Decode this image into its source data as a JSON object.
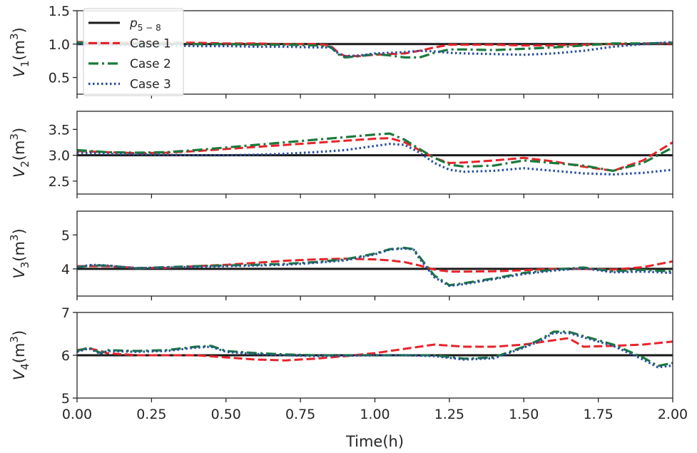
{
  "chart_data": [
    {
      "type": "line",
      "ylabel": "V1(m3)",
      "ylabel_var": "V",
      "ylabel_sub": "1",
      "ylabel_unit_base": "(m",
      "ylabel_unit_sup": "3",
      "ylabel_unit_end": ")",
      "xlim": [
        0,
        2
      ],
      "ylim": [
        0.25,
        1.5
      ],
      "yticks": [
        0.5,
        1.0,
        1.5
      ],
      "ytick_labels": [
        "0.5",
        "1.0",
        "1.5"
      ],
      "reference": 1.0,
      "series": [
        {
          "name": "Case 1",
          "x": [
            0,
            0.1,
            0.2,
            0.3,
            0.4,
            0.5,
            0.6,
            0.7,
            0.8,
            0.85,
            0.88,
            0.9,
            0.95,
            1.0,
            1.05,
            1.1,
            1.15,
            1.2,
            1.25,
            1.3,
            1.4,
            1.5,
            1.6,
            1.7,
            1.8,
            1.9,
            2.0
          ],
          "y": [
            1.03,
            1.03,
            1.02,
            1.02,
            1.02,
            1.01,
            1.01,
            1.0,
            1.0,
            0.98,
            0.86,
            0.82,
            0.82,
            0.84,
            0.85,
            0.86,
            0.9,
            0.95,
            0.99,
            0.99,
            0.99,
            0.98,
            0.98,
            0.99,
            1.0,
            1.01,
            1.01
          ]
        },
        {
          "name": "Case 2",
          "x": [
            0,
            0.1,
            0.2,
            0.3,
            0.4,
            0.5,
            0.6,
            0.7,
            0.8,
            0.85,
            0.88,
            0.9,
            0.95,
            1.0,
            1.05,
            1.1,
            1.15,
            1.2,
            1.25,
            1.3,
            1.4,
            1.5,
            1.6,
            1.7,
            1.8,
            1.9,
            2.0
          ],
          "y": [
            1.02,
            1.02,
            1.01,
            1.01,
            1.0,
            1.0,
            0.99,
            0.99,
            0.98,
            0.96,
            0.84,
            0.8,
            0.82,
            0.85,
            0.83,
            0.8,
            0.8,
            0.87,
            0.92,
            0.92,
            0.91,
            0.93,
            0.95,
            0.98,
            1.01,
            1.01,
            1.02
          ]
        },
        {
          "name": "Case 3",
          "x": [
            0,
            0.1,
            0.2,
            0.3,
            0.4,
            0.5,
            0.6,
            0.7,
            0.8,
            0.85,
            0.88,
            0.9,
            0.95,
            1.0,
            1.05,
            1.1,
            1.15,
            1.2,
            1.25,
            1.3,
            1.4,
            1.5,
            1.6,
            1.7,
            1.8,
            1.9,
            2.0
          ],
          "y": [
            1.0,
            0.99,
            0.98,
            0.98,
            0.97,
            0.97,
            0.96,
            0.96,
            0.95,
            0.95,
            0.85,
            0.82,
            0.83,
            0.86,
            0.87,
            0.88,
            0.9,
            0.89,
            0.87,
            0.86,
            0.85,
            0.84,
            0.86,
            0.9,
            0.96,
            1.0,
            1.03
          ]
        }
      ]
    },
    {
      "type": "line",
      "ylabel": "V2(m3)",
      "ylabel_var": "V",
      "ylabel_sub": "2",
      "ylabel_unit_base": "(m",
      "ylabel_unit_sup": "3",
      "ylabel_unit_end": ")",
      "xlim": [
        0,
        2
      ],
      "ylim": [
        2.25,
        3.85
      ],
      "yticks": [
        2.5,
        3.0,
        3.5
      ],
      "ytick_labels": [
        "2.5",
        "3.0",
        "3.5"
      ],
      "reference": 3.0,
      "series": [
        {
          "name": "Case 1",
          "x": [
            0,
            0.1,
            0.2,
            0.3,
            0.4,
            0.5,
            0.6,
            0.7,
            0.8,
            0.9,
            1.0,
            1.05,
            1.1,
            1.15,
            1.2,
            1.25,
            1.3,
            1.4,
            1.5,
            1.6,
            1.7,
            1.8,
            1.9,
            2.0
          ],
          "y": [
            3.08,
            3.06,
            3.04,
            3.05,
            3.08,
            3.12,
            3.16,
            3.2,
            3.24,
            3.28,
            3.32,
            3.33,
            3.25,
            3.1,
            2.95,
            2.85,
            2.86,
            2.9,
            2.95,
            2.88,
            2.78,
            2.7,
            2.9,
            3.25
          ]
        },
        {
          "name": "Case 2",
          "x": [
            0,
            0.1,
            0.2,
            0.3,
            0.4,
            0.5,
            0.6,
            0.7,
            0.8,
            0.9,
            1.0,
            1.05,
            1.1,
            1.15,
            1.2,
            1.25,
            1.3,
            1.4,
            1.5,
            1.6,
            1.7,
            1.8,
            1.9,
            2.0
          ],
          "y": [
            3.1,
            3.06,
            3.05,
            3.06,
            3.1,
            3.15,
            3.2,
            3.25,
            3.3,
            3.35,
            3.4,
            3.42,
            3.3,
            3.12,
            2.95,
            2.82,
            2.78,
            2.8,
            2.9,
            2.85,
            2.8,
            2.7,
            2.85,
            3.15
          ]
        },
        {
          "name": "Case 3",
          "x": [
            0,
            0.1,
            0.2,
            0.3,
            0.4,
            0.5,
            0.6,
            0.7,
            0.8,
            0.9,
            1.0,
            1.05,
            1.1,
            1.15,
            1.2,
            1.25,
            1.3,
            1.4,
            1.5,
            1.6,
            1.7,
            1.8,
            1.9,
            2.0
          ],
          "y": [
            3.05,
            3.03,
            3.02,
            3.01,
            3.0,
            3.0,
            3.01,
            3.03,
            3.06,
            3.1,
            3.18,
            3.22,
            3.2,
            3.05,
            2.85,
            2.72,
            2.68,
            2.7,
            2.75,
            2.7,
            2.65,
            2.63,
            2.66,
            2.72
          ]
        }
      ]
    },
    {
      "type": "line",
      "ylabel": "V3(m3)",
      "ylabel_var": "V",
      "ylabel_sub": "3",
      "ylabel_unit_base": "(m",
      "ylabel_unit_sup": "3",
      "ylabel_unit_end": ")",
      "xlim": [
        0,
        2
      ],
      "ylim": [
        3.2,
        5.7
      ],
      "yticks": [
        4,
        5
      ],
      "ytick_labels": [
        "4",
        "5"
      ],
      "reference": 4.0,
      "series": [
        {
          "name": "Case 1",
          "x": [
            0,
            0.1,
            0.2,
            0.3,
            0.4,
            0.5,
            0.6,
            0.7,
            0.8,
            0.9,
            1.0,
            1.05,
            1.1,
            1.15,
            1.2,
            1.25,
            1.3,
            1.4,
            1.5,
            1.6,
            1.7,
            1.8,
            1.9,
            2.0
          ],
          "y": [
            4.08,
            4.08,
            4.03,
            4.03,
            4.08,
            4.12,
            4.18,
            4.24,
            4.28,
            4.3,
            4.28,
            4.25,
            4.2,
            4.1,
            3.98,
            3.92,
            3.92,
            3.93,
            3.96,
            4.0,
            4.0,
            3.98,
            4.05,
            4.22
          ]
        },
        {
          "name": "Case 2",
          "x": [
            0,
            0.05,
            0.1,
            0.2,
            0.3,
            0.4,
            0.5,
            0.6,
            0.7,
            0.8,
            0.9,
            1.0,
            1.05,
            1.1,
            1.13,
            1.15,
            1.2,
            1.25,
            1.3,
            1.4,
            1.5,
            1.6,
            1.7,
            1.8,
            1.9,
            2.0
          ],
          "y": [
            4.05,
            4.1,
            4.1,
            4.02,
            4.05,
            4.08,
            4.1,
            4.12,
            4.15,
            4.2,
            4.28,
            4.45,
            4.58,
            4.62,
            4.58,
            4.35,
            3.8,
            3.52,
            3.58,
            3.72,
            3.88,
            3.98,
            4.04,
            3.93,
            3.97,
            3.92
          ]
        },
        {
          "name": "Case 3",
          "x": [
            0,
            0.05,
            0.1,
            0.2,
            0.3,
            0.4,
            0.5,
            0.6,
            0.7,
            0.8,
            0.9,
            1.0,
            1.05,
            1.1,
            1.13,
            1.15,
            1.2,
            1.25,
            1.3,
            1.4,
            1.5,
            1.6,
            1.7,
            1.8,
            1.9,
            2.0
          ],
          "y": [
            4.05,
            4.12,
            4.1,
            4.02,
            4.04,
            4.06,
            4.08,
            4.1,
            4.12,
            4.18,
            4.25,
            4.43,
            4.57,
            4.6,
            4.57,
            4.3,
            3.75,
            3.5,
            3.55,
            3.7,
            3.85,
            3.95,
            4.02,
            3.9,
            3.92,
            3.88
          ]
        }
      ]
    },
    {
      "type": "line",
      "ylabel": "V4(m3)",
      "ylabel_var": "V",
      "ylabel_sub": "4",
      "ylabel_unit_base": "(m",
      "ylabel_unit_sup": "3",
      "ylabel_unit_end": ")",
      "xlim": [
        0,
        2
      ],
      "ylim": [
        5,
        7
      ],
      "yticks": [
        5,
        6,
        7
      ],
      "ytick_labels": [
        "5",
        "6",
        "7"
      ],
      "reference": 6.0,
      "xticks": [
        0,
        0.25,
        0.5,
        0.75,
        1.0,
        1.25,
        1.5,
        1.75,
        2.0
      ],
      "xtick_labels": [
        "0.00",
        "0.25",
        "0.50",
        "0.75",
        "1.00",
        "1.25",
        "1.50",
        "1.75",
        "2.00"
      ],
      "xlabel": "Time(h)",
      "series": [
        {
          "name": "Case 1",
          "x": [
            0,
            0.04,
            0.08,
            0.1,
            0.2,
            0.3,
            0.4,
            0.5,
            0.6,
            0.7,
            0.8,
            0.9,
            1.0,
            1.1,
            1.2,
            1.3,
            1.4,
            1.5,
            1.6,
            1.65,
            1.7,
            1.8,
            1.9,
            2.0
          ],
          "y": [
            6.12,
            6.16,
            6.1,
            6.05,
            6.0,
            6.0,
            6.0,
            5.95,
            5.9,
            5.88,
            5.92,
            5.98,
            6.05,
            6.15,
            6.25,
            6.2,
            6.2,
            6.25,
            6.35,
            6.4,
            6.2,
            6.22,
            6.25,
            6.32
          ]
        },
        {
          "name": "Case 2",
          "x": [
            0,
            0.04,
            0.08,
            0.1,
            0.2,
            0.3,
            0.4,
            0.45,
            0.5,
            0.6,
            0.7,
            0.8,
            0.9,
            1.0,
            1.1,
            1.2,
            1.3,
            1.4,
            1.5,
            1.55,
            1.6,
            1.65,
            1.7,
            1.8,
            1.9,
            1.95,
            2.0
          ],
          "y": [
            6.1,
            6.18,
            6.05,
            6.12,
            6.1,
            6.12,
            6.2,
            6.22,
            6.1,
            6.05,
            6.02,
            6.0,
            6.0,
            6.0,
            6.0,
            6.0,
            5.92,
            5.95,
            6.2,
            6.35,
            6.55,
            6.55,
            6.45,
            6.25,
            5.95,
            5.75,
            5.82
          ]
        },
        {
          "name": "Case 3",
          "x": [
            0,
            0.04,
            0.08,
            0.1,
            0.2,
            0.3,
            0.4,
            0.45,
            0.5,
            0.6,
            0.7,
            0.8,
            0.9,
            1.0,
            1.1,
            1.2,
            1.3,
            1.4,
            1.5,
            1.55,
            1.6,
            1.65,
            1.7,
            1.8,
            1.9,
            1.95,
            2.0
          ],
          "y": [
            6.08,
            6.16,
            6.03,
            6.1,
            6.08,
            6.1,
            6.18,
            6.2,
            6.08,
            6.03,
            6.0,
            5.98,
            5.99,
            6.0,
            6.0,
            5.98,
            5.9,
            5.93,
            6.18,
            6.32,
            6.52,
            6.52,
            6.42,
            6.22,
            5.9,
            5.72,
            5.76
          ]
        }
      ]
    }
  ],
  "legend": {
    "placement": "upper-left of top panel",
    "entries": [
      {
        "label_base": "p",
        "label_sub": "5 − 8",
        "color": "#1a1a1a",
        "style": "solid"
      },
      {
        "label": "Case 1",
        "color": "#e8232a",
        "style": "dashed"
      },
      {
        "label": "Case 2",
        "color": "#1a7a3c",
        "style": "dashdot"
      },
      {
        "label": "Case 3",
        "color": "#2a4fa0",
        "style": "dotted"
      }
    ]
  },
  "colors": {
    "reference": "#1a1a1a",
    "case1": "#e8232a",
    "case2": "#1a7a3c",
    "case3": "#2a4fa0",
    "axes": "#262626"
  }
}
